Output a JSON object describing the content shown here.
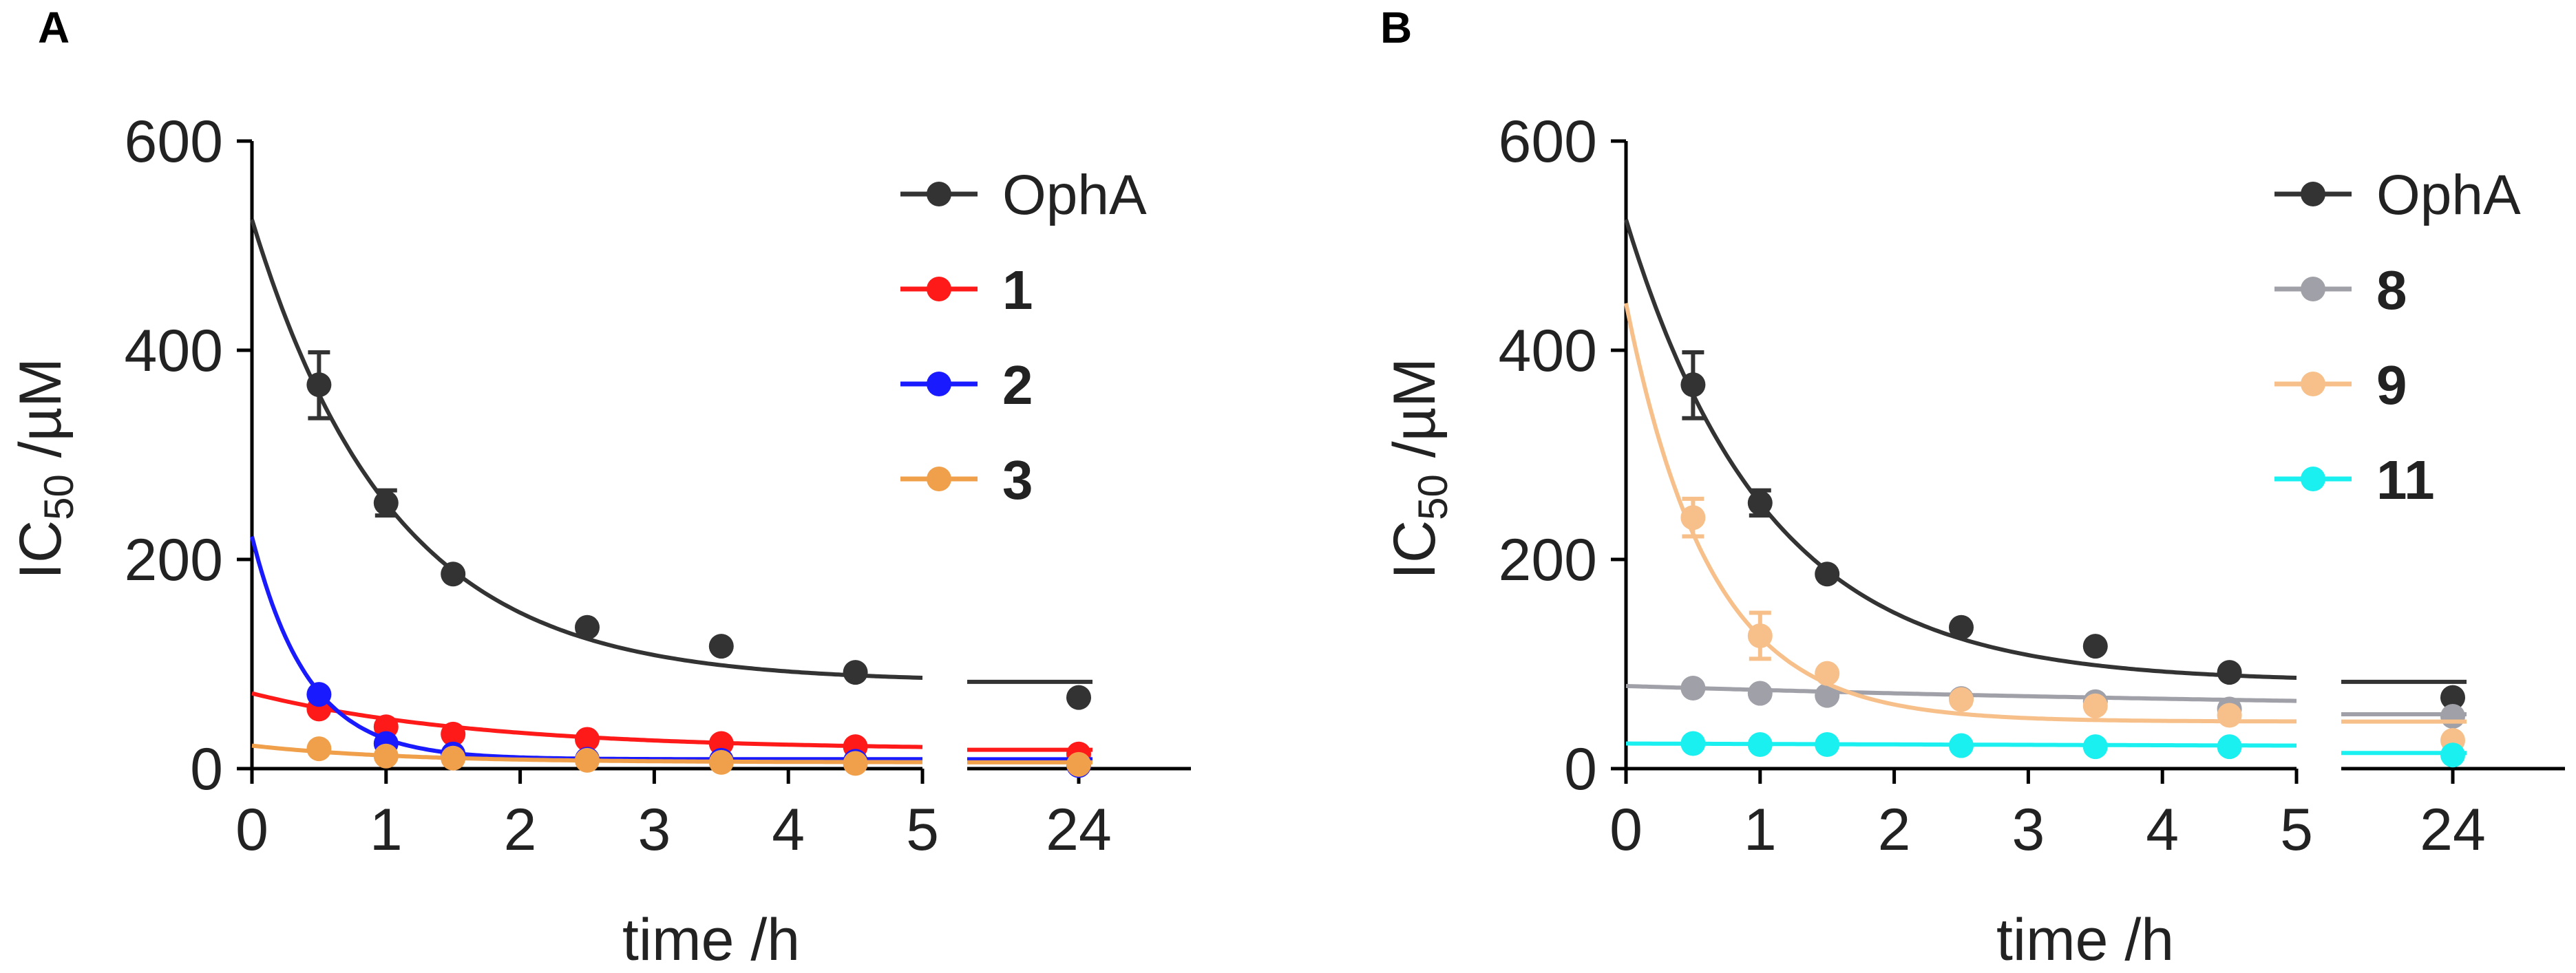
{
  "chart_data": [
    {
      "type": "scatter",
      "panel_label": "A",
      "xlabel": "time /h",
      "ylabel_main": "IC",
      "ylabel_sub": "50",
      "ylabel_unit": " /µM",
      "ylim": [
        0,
        600
      ],
      "yticks": [
        0,
        200,
        400,
        600
      ],
      "ytick_labels": [
        "0",
        "200",
        "400",
        "600"
      ],
      "xlim_main": [
        0,
        5
      ],
      "xticks_main": [
        0,
        1,
        2,
        3,
        4,
        5
      ],
      "xtick_labels_main": [
        "0",
        "1",
        "2",
        "3",
        "4",
        "5"
      ],
      "x_break_tick": 24,
      "x_break_tick_label": "24",
      "legend_position": "top-right",
      "series": [
        {
          "name": "OphA",
          "bold": false,
          "color": "#333333",
          "points": [
            [
              0.5,
              367
            ],
            [
              1,
              254
            ],
            [
              1.5,
              186
            ],
            [
              2.5,
              135
            ],
            [
              3.5,
              117
            ],
            [
              4.5,
              92
            ],
            [
              24,
              68
            ]
          ],
          "error_bars": [
            [
              0.5,
              335,
              398
            ],
            [
              1,
              242,
              266
            ]
          ],
          "fit": {
            "start": 525,
            "plateau": 83,
            "k": 0.95
          },
          "fit_24": 83
        },
        {
          "name": "1",
          "bold": true,
          "color": "#ff1a1a",
          "points": [
            [
              0.5,
              57
            ],
            [
              1,
              40
            ],
            [
              1.5,
              33
            ],
            [
              2.5,
              28
            ],
            [
              3.5,
              24
            ],
            [
              4.5,
              21
            ],
            [
              24,
              14
            ]
          ],
          "error_bars": [],
          "fit": {
            "start": 72,
            "plateau": 18,
            "k": 0.6
          },
          "fit_24": 18
        },
        {
          "name": "2",
          "bold": true,
          "color": "#1a1aff",
          "points": [
            [
              0.5,
              71
            ],
            [
              1,
              24
            ],
            [
              1.5,
              14
            ],
            [
              2.5,
              9
            ],
            [
              3.5,
              8
            ],
            [
              4.5,
              7
            ],
            [
              24,
              3
            ]
          ],
          "error_bars": [],
          "fit": {
            "start": 222,
            "plateau": 9,
            "k": 2.4
          },
          "fit_24": 9
        },
        {
          "name": "3",
          "bold": true,
          "color": "#f0a04b",
          "points": [
            [
              0.5,
              19
            ],
            [
              1,
              12
            ],
            [
              1.5,
              10
            ],
            [
              2.5,
              8
            ],
            [
              3.5,
              6
            ],
            [
              4.5,
              5
            ],
            [
              24,
              4
            ]
          ],
          "error_bars": [],
          "fit": {
            "start": 22,
            "plateau": 6,
            "k": 0.9
          },
          "fit_24": 6
        }
      ]
    },
    {
      "type": "scatter",
      "panel_label": "B",
      "xlabel": "time /h",
      "ylabel_main": "IC",
      "ylabel_sub": "50",
      "ylabel_unit": " /µM",
      "ylim": [
        0,
        600
      ],
      "yticks": [
        0,
        200,
        400,
        600
      ],
      "ytick_labels": [
        "0",
        "200",
        "400",
        "600"
      ],
      "xlim_main": [
        0,
        5
      ],
      "xticks_main": [
        0,
        1,
        2,
        3,
        4,
        5
      ],
      "xtick_labels_main": [
        "0",
        "1",
        "2",
        "3",
        "4",
        "5"
      ],
      "x_break_tick": 24,
      "x_break_tick_label": "24",
      "legend_position": "top-right",
      "series": [
        {
          "name": "OphA",
          "bold": false,
          "color": "#333333",
          "points": [
            [
              0.5,
              367
            ],
            [
              1,
              254
            ],
            [
              1.5,
              186
            ],
            [
              2.5,
              135
            ],
            [
              3.5,
              117
            ],
            [
              4.5,
              92
            ],
            [
              24,
              68
            ]
          ],
          "error_bars": [
            [
              0.5,
              335,
              398
            ],
            [
              1,
              242,
              266
            ]
          ],
          "fit": {
            "start": 525,
            "plateau": 83,
            "k": 0.95
          },
          "fit_24": 83
        },
        {
          "name": "8",
          "bold": true,
          "color": "#a0a0a8",
          "points": [
            [
              0.5,
              77
            ],
            [
              1,
              72
            ],
            [
              1.5,
              70
            ],
            [
              2.5,
              67
            ],
            [
              3.5,
              64
            ],
            [
              4.5,
              57
            ],
            [
              24,
              50
            ]
          ],
          "error_bars": [],
          "fit": {
            "start": 79,
            "plateau": 52,
            "k": 0.15
          },
          "fit_24": 52
        },
        {
          "name": "9",
          "bold": true,
          "color": "#f7c08a",
          "points": [
            [
              0.5,
              240
            ],
            [
              1,
              127
            ],
            [
              1.5,
              91
            ],
            [
              2.5,
              66
            ],
            [
              3.5,
              60
            ],
            [
              4.5,
              51
            ],
            [
              24,
              27
            ]
          ],
          "error_bars": [
            [
              0.5,
              222,
              258
            ],
            [
              1,
              105,
              149
            ]
          ],
          "fit": {
            "start": 445,
            "plateau": 45,
            "k": 1.6
          },
          "fit_24": 45
        },
        {
          "name": "11",
          "bold": true,
          "color": "#1af0f0",
          "points": [
            [
              0.5,
              24
            ],
            [
              1,
              23
            ],
            [
              1.5,
              23
            ],
            [
              2.5,
              22
            ],
            [
              3.5,
              21
            ],
            [
              4.5,
              21
            ],
            [
              24,
              13
            ]
          ],
          "error_bars": [],
          "fit": {
            "start": 24,
            "plateau": 15,
            "k": 0.05
          },
          "fit_24": 15
        }
      ]
    }
  ]
}
